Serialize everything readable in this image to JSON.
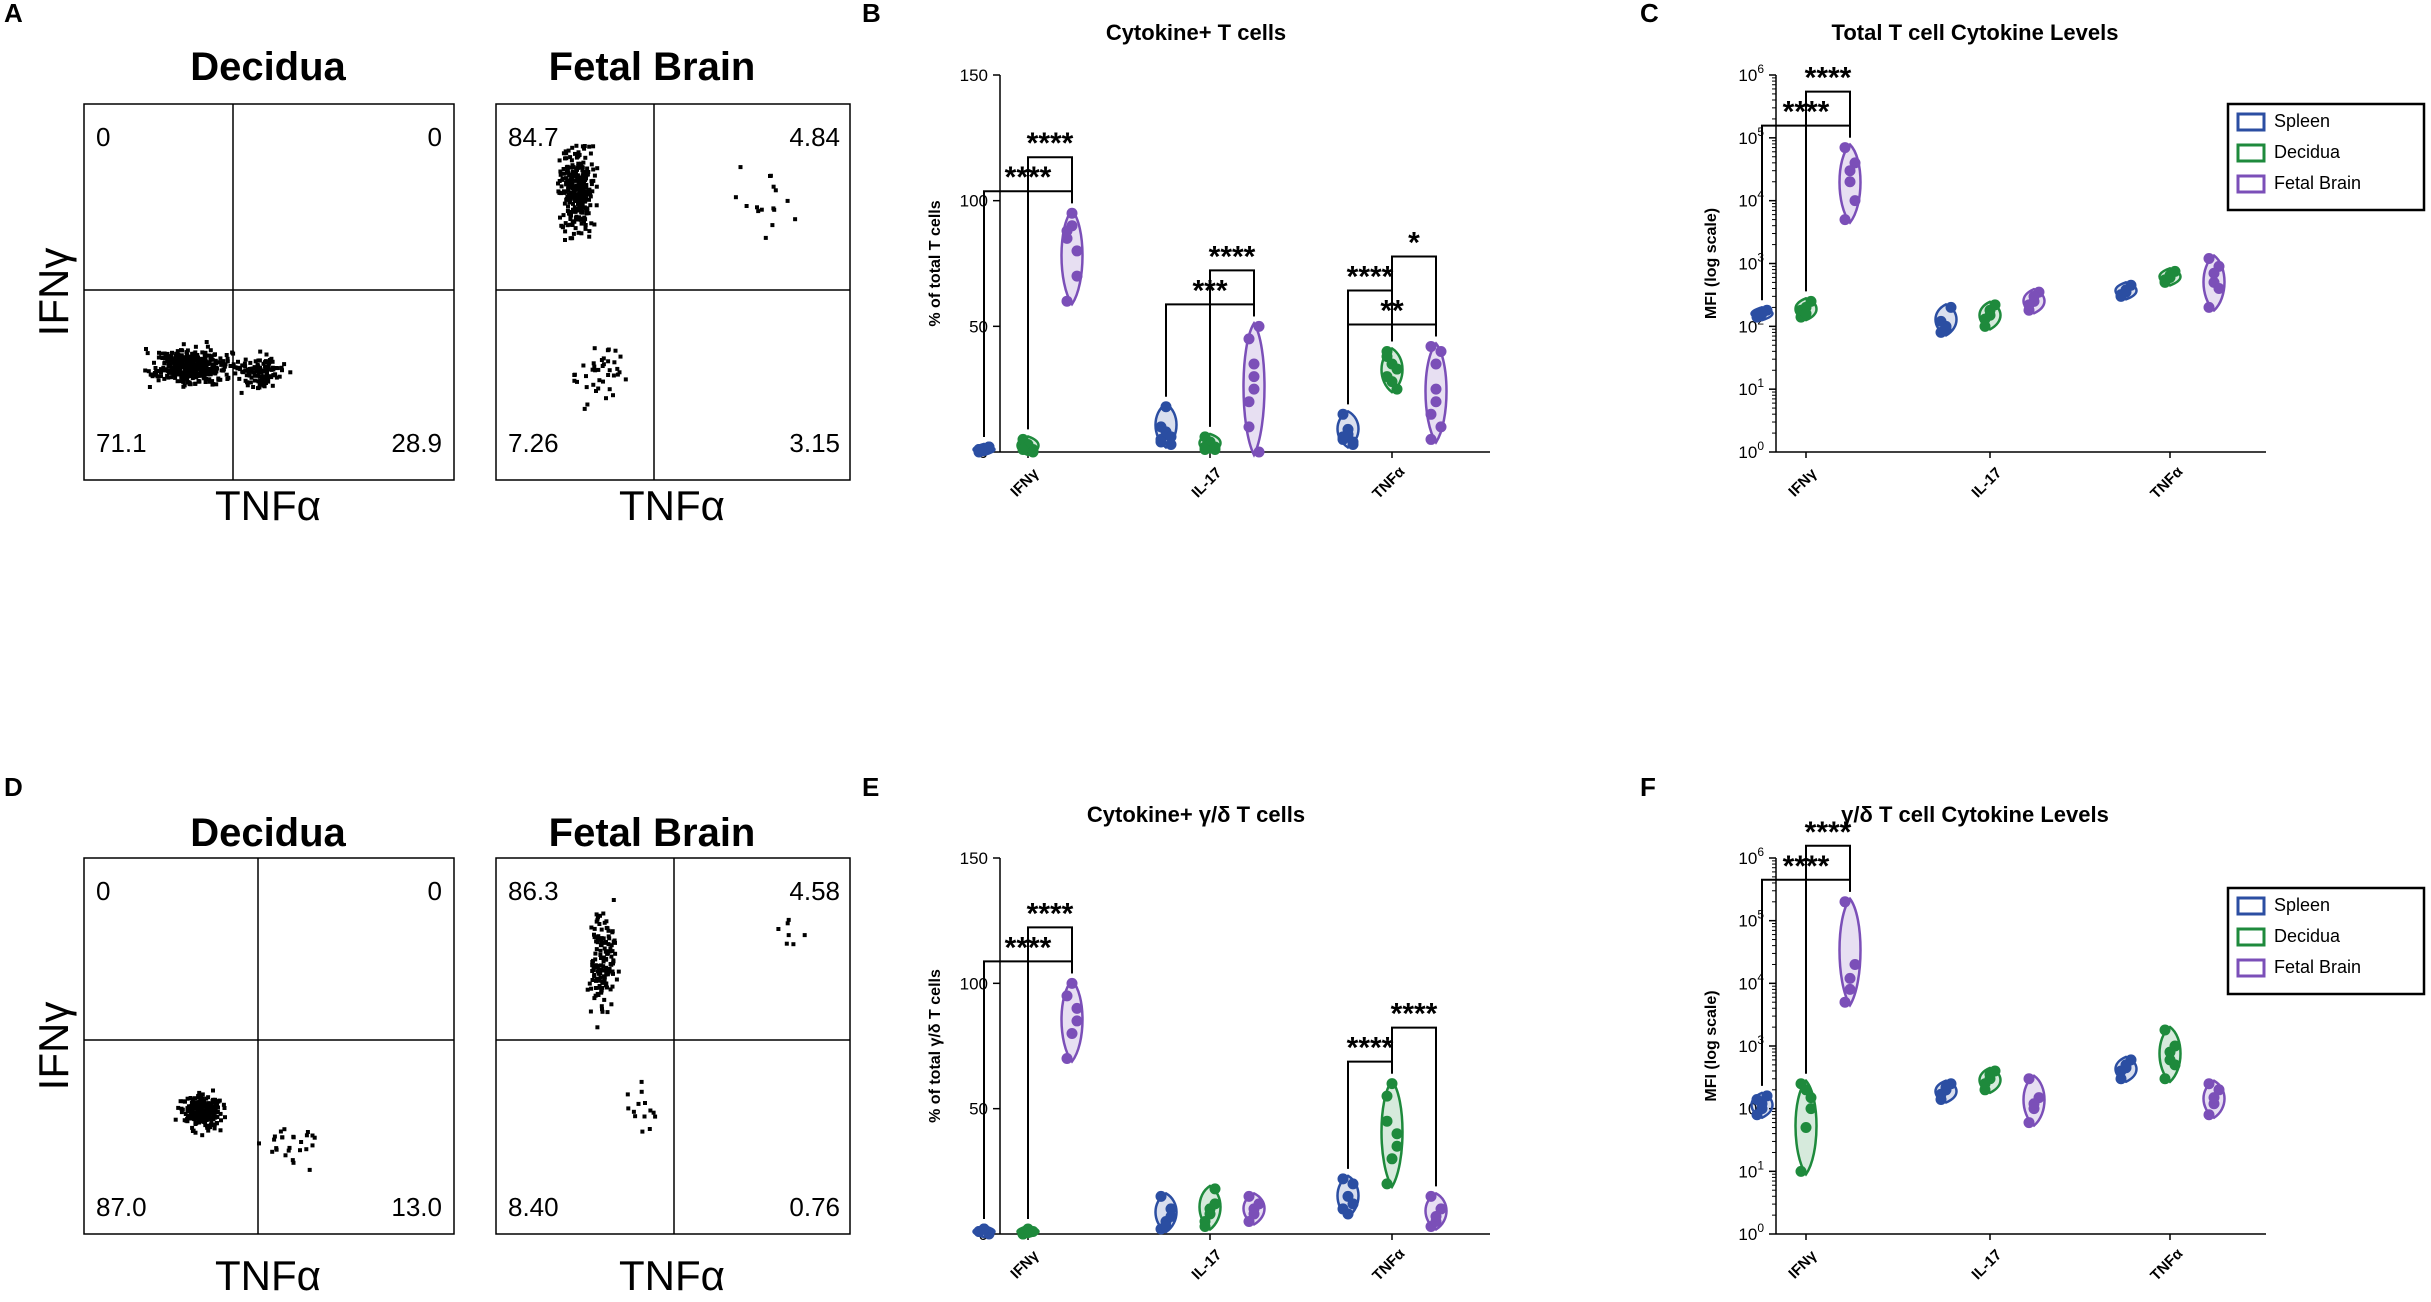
{
  "colors": {
    "spleen": "#2b4ea2",
    "decidua": "#1e8a3c",
    "fetal_brain": "#7b4fb8"
  },
  "panels": [
    {
      "letter": "A",
      "type": "flow",
      "plots": [
        {
          "title": "Decidua",
          "q": {
            "ul": "0",
            "ur": "0",
            "ll": "71.1",
            "lr": "28.9"
          }
        },
        {
          "title": "Fetal Brain",
          "q": {
            "ul": "84.7",
            "ur": "4.84",
            "ll": "7.26",
            "lr": "3.15"
          }
        }
      ],
      "xlabel": "TNFα",
      "ylabel": "IFNγ"
    },
    {
      "letter": "B",
      "type": "violin"
    },
    {
      "letter": "C",
      "type": "violin"
    },
    {
      "letter": "D",
      "type": "flow",
      "plots": [
        {
          "title": "Decidua",
          "q": {
            "ul": "0",
            "ur": "0",
            "ll": "87.0",
            "lr": "13.0"
          }
        },
        {
          "title": "Fetal Brain",
          "q": {
            "ul": "86.3",
            "ur": "4.58",
            "ll": "8.40",
            "lr": "0.76"
          }
        }
      ],
      "xlabel": "TNFα",
      "ylabel": "IFNγ"
    },
    {
      "letter": "E",
      "type": "violin"
    },
    {
      "letter": "F",
      "type": "violin"
    }
  ],
  "chart_data": [
    {
      "panel": "B",
      "type": "violin",
      "title": "Cytokine+ T cells",
      "ylabel": "% of total T cells",
      "yscale": "linear",
      "ylim": [
        0,
        150
      ],
      "yticks": [
        0,
        50,
        100,
        150
      ],
      "categories": [
        "IFNγ",
        "IL-17",
        "TNFα"
      ],
      "series": [
        {
          "name": "Spleen",
          "values": [
            [
              1,
              1,
              2,
              0,
              1,
              2,
              1
            ],
            [
              5,
              8,
              3,
              10,
              18,
              6,
              4
            ],
            [
              5,
              9,
              3,
              15,
              7,
              4,
              6
            ]
          ]
        },
        {
          "name": "Decidua",
          "values": [
            [
              2,
              3,
              1,
              5,
              2,
              0,
              1
            ],
            [
              2,
              4,
              1,
              6,
              3,
              2,
              1
            ],
            [
              30,
              35,
              33,
              40,
              28,
              25,
              38
            ]
          ]
        },
        {
          "name": "Fetal Brain",
          "values": [
            [
              85,
              95,
              70,
              60,
              90,
              80,
              88
            ],
            [
              20,
              35,
              50,
              10,
              25,
              0,
              45,
              30
            ],
            [
              15,
              25,
              40,
              5,
              35,
              10,
              42,
              20
            ]
          ]
        }
      ],
      "significance": [
        {
          "category": "IFNγ",
          "label": "****",
          "from": "Spleen",
          "to": "Fetal Brain"
        },
        {
          "category": "IFNγ",
          "label": "****",
          "from": "Decidua",
          "to": "Fetal Brain"
        },
        {
          "category": "IL-17",
          "label": "***",
          "from": "Spleen",
          "to": "Fetal Brain"
        },
        {
          "category": "IL-17",
          "label": "****",
          "from": "Decidua",
          "to": "Fetal Brain"
        },
        {
          "category": "TNFα",
          "label": "**",
          "from": "Spleen",
          "to": "Fetal Brain"
        },
        {
          "category": "TNFα",
          "label": "****",
          "from": "Spleen",
          "to": "Decidua"
        },
        {
          "category": "TNFα",
          "label": "*",
          "from": "Decidua",
          "to": "Fetal Brain"
        }
      ]
    },
    {
      "panel": "C",
      "type": "violin",
      "title": "Total T cell Cytokine Levels",
      "ylabel": "MFI (log scale)",
      "yscale": "log",
      "ylim": [
        1,
        1000000
      ],
      "yticks": [
        1,
        10,
        100,
        1000,
        10000,
        100000,
        1000000
      ],
      "ytick_labels": [
        [
          "10",
          "0"
        ],
        [
          "10",
          "1"
        ],
        [
          "10",
          "2"
        ],
        [
          "10",
          "3"
        ],
        [
          "10",
          "4"
        ],
        [
          "10",
          "5"
        ],
        [
          "10",
          "6"
        ]
      ],
      "categories": [
        "IFNγ",
        "IL-17",
        "TNFα"
      ],
      "series": [
        {
          "name": "Spleen",
          "values": [
            [
              140,
              170,
              180,
              150,
              160
            ],
            [
              80,
              100,
              200,
              120,
              90
            ],
            [
              300,
              350,
              450,
              320,
              380
            ]
          ]
        },
        {
          "name": "Decidua",
          "values": [
            [
              140,
              200,
              250,
              180,
              160
            ],
            [
              100,
              150,
              220,
              130,
              180
            ],
            [
              500,
              600,
              750,
              550,
              650
            ]
          ]
        },
        {
          "name": "Fetal Brain",
          "values": [
            [
              5000,
              20000,
              40000,
              70000,
              30000,
              10000
            ],
            [
              180,
              250,
              350,
              220,
              300
            ],
            [
              200,
              500,
              900,
              1200,
              700,
              400
            ]
          ]
        }
      ],
      "significance": [
        {
          "category": "IFNγ",
          "label": "****",
          "from": "Spleen",
          "to": "Fetal Brain"
        },
        {
          "category": "IFNγ",
          "label": "****",
          "from": "Decidua",
          "to": "Fetal Brain"
        }
      ],
      "legend": [
        "Spleen",
        "Decidua",
        "Fetal Brain"
      ]
    },
    {
      "panel": "E",
      "type": "violin",
      "title": "Cytokine+ γ/δ T cells",
      "ylabel": "% of total γ/δ T cells",
      "yscale": "linear",
      "ylim": [
        0,
        150
      ],
      "yticks": [
        0,
        50,
        100,
        150
      ],
      "categories": [
        "IFNγ",
        "IL-17",
        "TNFα"
      ],
      "series": [
        {
          "name": "Spleen",
          "values": [
            [
              1,
              2,
              0,
              1,
              2
            ],
            [
              2,
              5,
              10,
              15,
              3,
              7
            ],
            [
              10,
              15,
              20,
              22,
              8,
              12
            ]
          ]
        },
        {
          "name": "Decidua",
          "values": [
            [
              0,
              1,
              1,
              0,
              2
            ],
            [
              5,
              10,
              18,
              3,
              8,
              12
            ],
            [
              20,
              30,
              40,
              55,
              60,
              35,
              45
            ]
          ]
        },
        {
          "name": "Fetal Brain",
          "values": [
            [
              70,
              80,
              90,
              95,
              100,
              85
            ],
            [
              5,
              10,
              12,
              15,
              8
            ],
            [
              3,
              5,
              10,
              15,
              7
            ]
          ]
        }
      ],
      "significance": [
        {
          "category": "IFNγ",
          "label": "****",
          "from": "Spleen",
          "to": "Fetal Brain"
        },
        {
          "category": "IFNγ",
          "label": "****",
          "from": "Decidua",
          "to": "Fetal Brain"
        },
        {
          "category": "TNFα",
          "label": "****",
          "from": "Spleen",
          "to": "Decidua"
        },
        {
          "category": "TNFα",
          "label": "****",
          "from": "Decidua",
          "to": "Fetal Brain"
        }
      ]
    },
    {
      "panel": "F",
      "type": "violin",
      "title": "γ/δ T cell Cytokine Levels",
      "ylabel": "MFI (log scale)",
      "yscale": "log",
      "ylim": [
        1,
        1000000
      ],
      "yticks": [
        1,
        10,
        100,
        1000,
        10000,
        100000,
        1000000
      ],
      "ytick_labels": [
        [
          "10",
          "0"
        ],
        [
          "10",
          "1"
        ],
        [
          "10",
          "2"
        ],
        [
          "10",
          "3"
        ],
        [
          "10",
          "4"
        ],
        [
          "10",
          "5"
        ],
        [
          "10",
          "6"
        ]
      ],
      "categories": [
        "IFNγ",
        "IL-17",
        "TNFα"
      ],
      "series": [
        {
          "name": "Spleen",
          "values": [
            [
              80,
              120,
              160,
              140,
              100
            ],
            [
              140,
              200,
              250,
              170,
              220
            ],
            [
              300,
              450,
              600,
              400,
              500
            ]
          ]
        },
        {
          "name": "Decidua",
          "values": [
            [
              10,
              50,
              150,
              250,
              200,
              100
            ],
            [
              200,
              300,
              400,
              250,
              350
            ],
            [
              300,
              600,
              1000,
              1800,
              800,
              500
            ]
          ]
        },
        {
          "name": "Fetal Brain",
          "values": [
            [
              5000,
              8000,
              20000,
              200000,
              12000
            ],
            [
              60,
              100,
              150,
              300,
              120
            ],
            [
              80,
              120,
              200,
              250,
              150
            ]
          ]
        }
      ],
      "significance": [
        {
          "category": "IFNγ",
          "label": "****",
          "from": "Spleen",
          "to": "Fetal Brain"
        },
        {
          "category": "IFNγ",
          "label": "****",
          "from": "Decidua",
          "to": "Fetal Brain"
        }
      ],
      "legend": [
        "Spleen",
        "Decidua",
        "Fetal Brain"
      ]
    }
  ]
}
